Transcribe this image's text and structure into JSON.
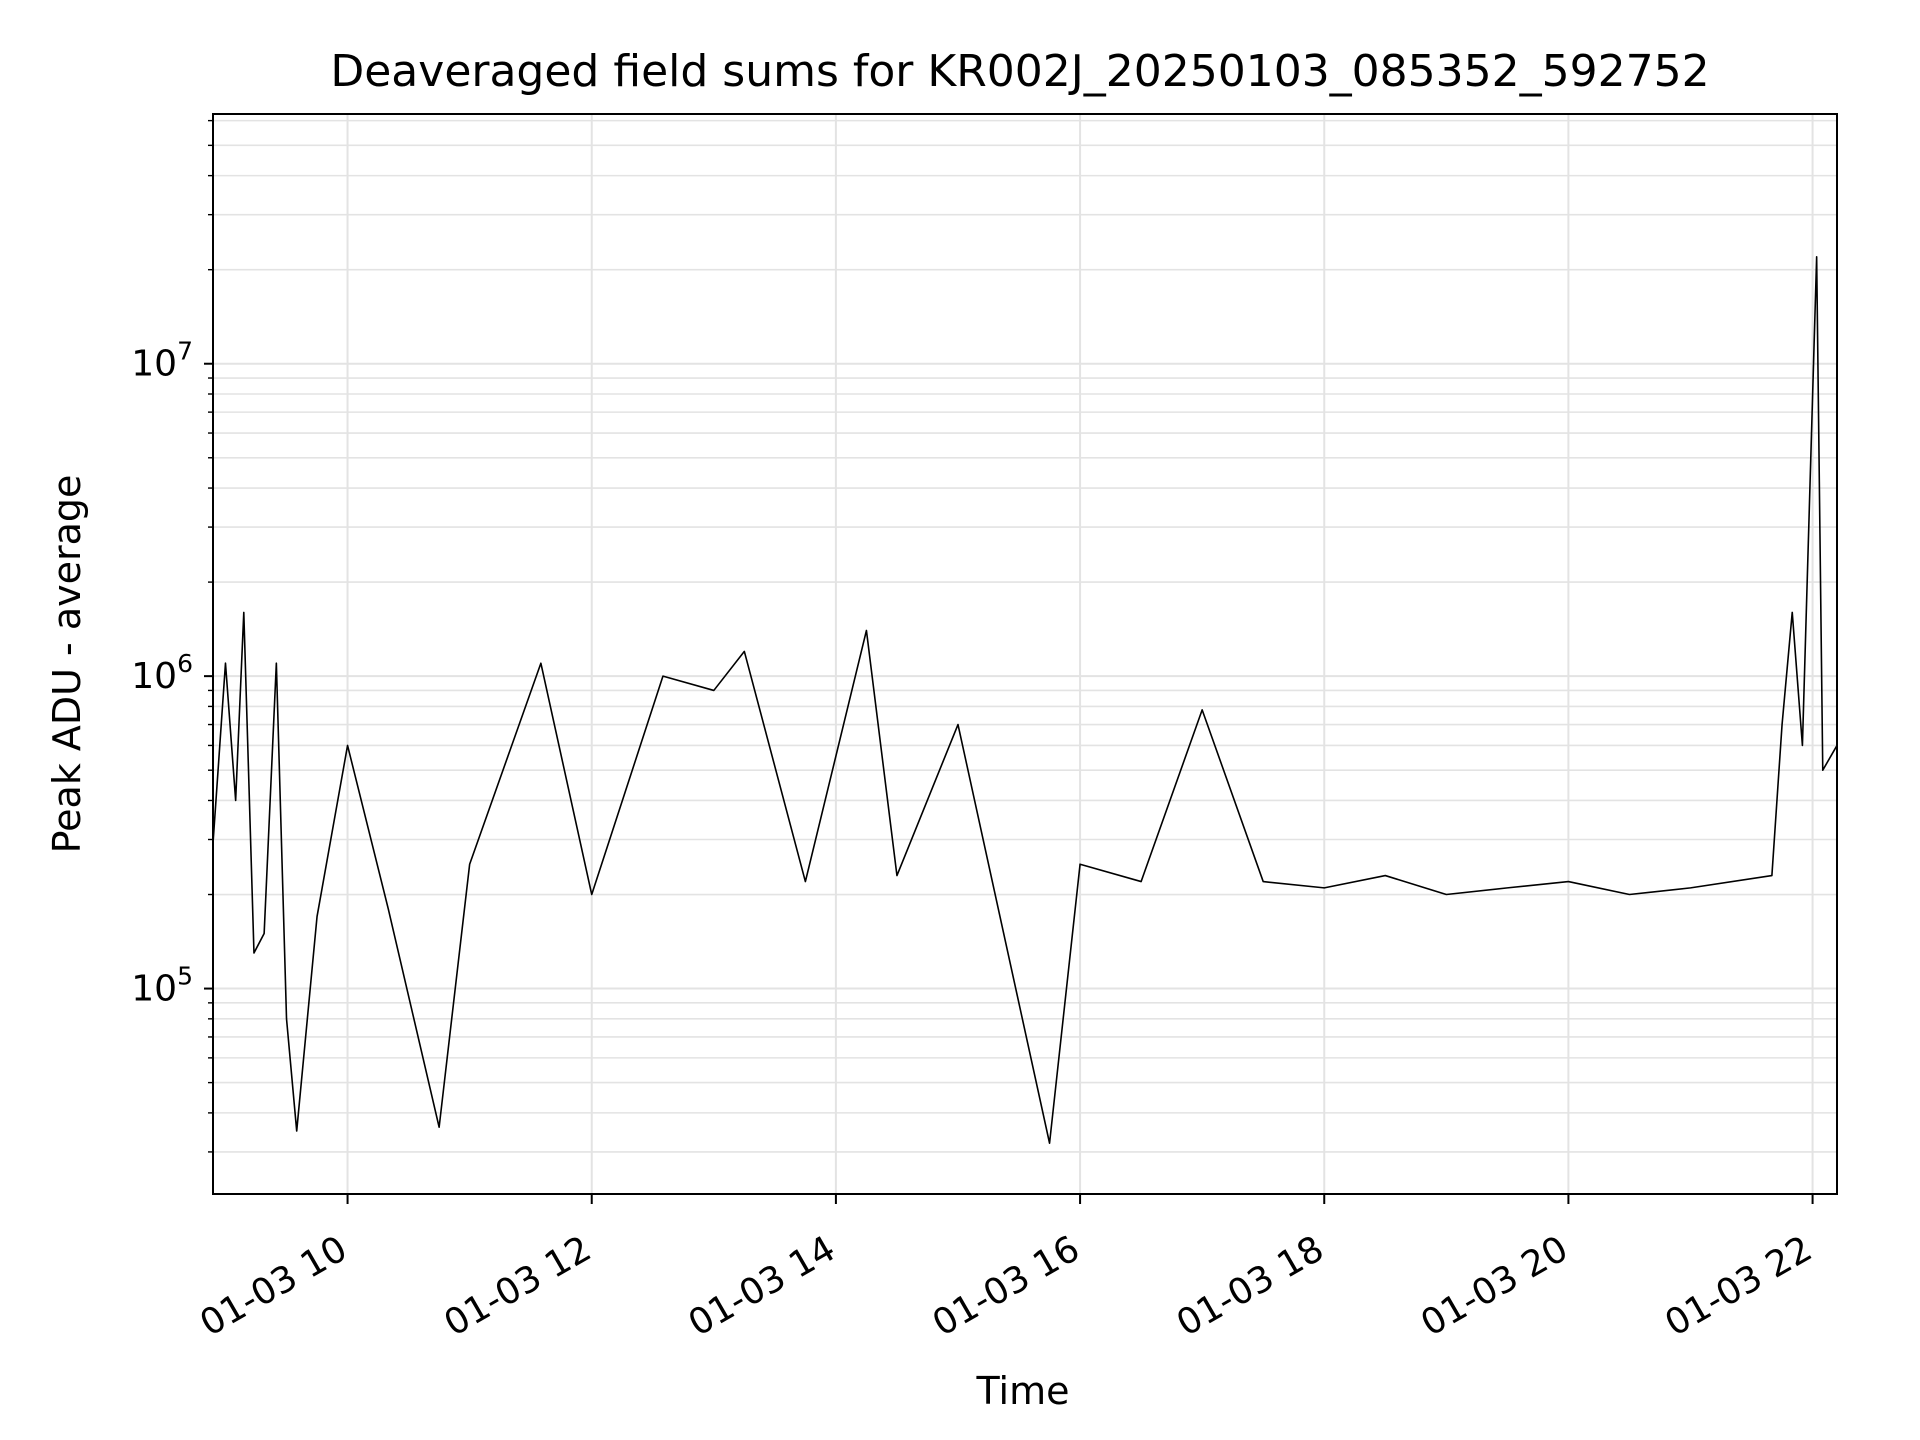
{
  "chart_data": {
    "type": "line",
    "title": "Deaveraged field sums for KR002J_20250103_085352_592752",
    "xlabel": "Time",
    "ylabel": "Peak ADU - average",
    "yscale": "log",
    "xlim": [
      "2025-01-03T08:53:52",
      "2025-01-03T22:12:00"
    ],
    "ylim": [
      22000,
      63000000
    ],
    "x_tick_labels": [
      "01-03 10",
      "01-03 12",
      "01-03 14",
      "01-03 16",
      "01-03 18",
      "01-03 20",
      "01-03 22"
    ],
    "x_tick_values": [
      "2025-01-03T10:00:00",
      "2025-01-03T12:00:00",
      "2025-01-03T14:00:00",
      "2025-01-03T16:00:00",
      "2025-01-03T18:00:00",
      "2025-01-03T20:00:00",
      "2025-01-03T22:00:00"
    ],
    "y_tick_labels": [
      {
        "base": "10",
        "exp": "5"
      },
      {
        "base": "10",
        "exp": "6"
      },
      {
        "base": "10",
        "exp": "7"
      }
    ],
    "y_tick_values": [
      100000,
      1000000,
      10000000
    ],
    "grid": true,
    "series": [
      {
        "color": "#000000",
        "points": [
          [
            "2025-01-03T08:54:00",
            300000
          ],
          [
            "2025-01-03T09:00:00",
            1100000
          ],
          [
            "2025-01-03T09:05:00",
            400000
          ],
          [
            "2025-01-03T09:09:00",
            1600000
          ],
          [
            "2025-01-03T09:14:00",
            130000
          ],
          [
            "2025-01-03T09:19:00",
            150000
          ],
          [
            "2025-01-03T09:25:00",
            1100000
          ],
          [
            "2025-01-03T09:30:00",
            80000
          ],
          [
            "2025-01-03T09:35:00",
            35000
          ],
          [
            "2025-01-03T09:45:00",
            170000
          ],
          [
            "2025-01-03T10:00:00",
            600000
          ],
          [
            "2025-01-03T10:20:00",
            180000
          ],
          [
            "2025-01-03T10:45:00",
            36000
          ],
          [
            "2025-01-03T11:00:00",
            250000
          ],
          [
            "2025-01-03T11:35:00",
            1100000
          ],
          [
            "2025-01-03T12:00:00",
            200000
          ],
          [
            "2025-01-03T12:35:00",
            1000000
          ],
          [
            "2025-01-03T13:00:00",
            900000
          ],
          [
            "2025-01-03T13:15:00",
            1200000
          ],
          [
            "2025-01-03T13:45:00",
            220000
          ],
          [
            "2025-01-03T14:15:00",
            1400000
          ],
          [
            "2025-01-03T14:30:00",
            230000
          ],
          [
            "2025-01-03T15:00:00",
            700000
          ],
          [
            "2025-01-03T15:45:00",
            32000
          ],
          [
            "2025-01-03T16:00:00",
            250000
          ],
          [
            "2025-01-03T16:30:00",
            220000
          ],
          [
            "2025-01-03T17:00:00",
            780000
          ],
          [
            "2025-01-03T17:30:00",
            220000
          ],
          [
            "2025-01-03T18:00:00",
            210000
          ],
          [
            "2025-01-03T18:30:00",
            230000
          ],
          [
            "2025-01-03T19:00:00",
            200000
          ],
          [
            "2025-01-03T19:30:00",
            210000
          ],
          [
            "2025-01-03T20:00:00",
            220000
          ],
          [
            "2025-01-03T20:30:00",
            200000
          ],
          [
            "2025-01-03T21:00:00",
            210000
          ],
          [
            "2025-01-03T21:40:00",
            230000
          ],
          [
            "2025-01-03T21:45:00",
            700000
          ],
          [
            "2025-01-03T21:50:00",
            1600000
          ],
          [
            "2025-01-03T21:55:00",
            600000
          ],
          [
            "2025-01-03T22:02:00",
            22000000
          ],
          [
            "2025-01-03T22:05:00",
            500000
          ],
          [
            "2025-01-03T22:12:00",
            600000
          ]
        ]
      }
    ]
  }
}
